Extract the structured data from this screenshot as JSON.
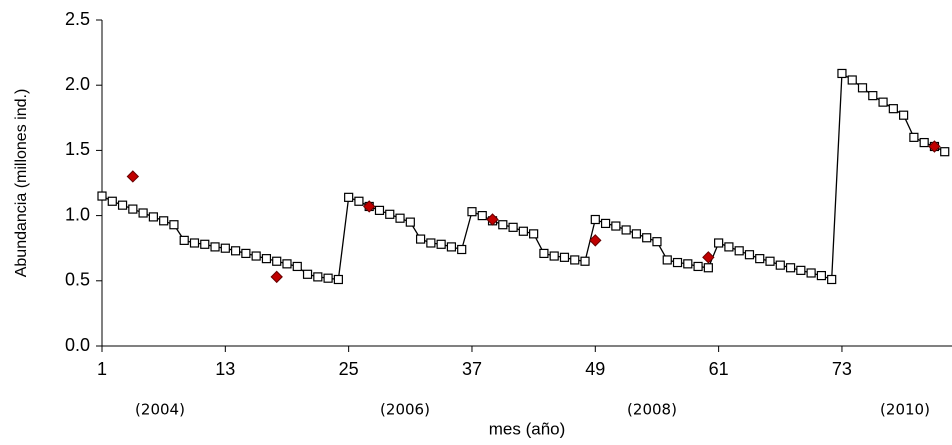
{
  "chart_data": {
    "type": "line",
    "y_axis_label": "Abundancia (millones ind.)",
    "x_axis_label": "mes (año)",
    "annotations": [
      "(2004)",
      "(2006)",
      "(2008)",
      "(2010)"
    ],
    "xlim": [
      1,
      84
    ],
    "ylim": [
      0,
      2.5
    ],
    "xticks": [
      1,
      13,
      25,
      37,
      49,
      61,
      73
    ],
    "yticks": [
      {
        "value": 0,
        "label": "0.0"
      },
      0.5,
      {
        "value": 1,
        "label": "1.0"
      },
      1.5,
      {
        "value": 2,
        "label": "2.0"
      },
      2.5
    ],
    "grid": false,
    "series": [
      {
        "color": "#000000",
        "marker": "square",
        "line": true,
        "x": [
          1,
          2,
          3,
          4,
          5,
          6,
          7,
          8,
          9,
          10,
          11,
          12,
          13,
          14,
          15,
          16,
          17,
          18,
          19,
          20,
          21,
          22,
          23,
          24,
          25,
          26,
          27,
          28,
          29,
          30,
          31,
          32,
          33,
          34,
          35,
          36,
          37,
          38,
          39,
          40,
          41,
          42,
          43,
          44,
          45,
          46,
          47,
          48,
          49,
          50,
          51,
          52,
          53,
          54,
          55,
          56,
          57,
          58,
          59,
          60,
          61,
          62,
          63,
          64,
          65,
          66,
          67,
          68,
          69,
          70,
          71,
          72,
          73,
          74,
          75,
          76,
          77,
          78,
          79,
          80,
          81,
          82,
          83
        ],
        "values": [
          1.15,
          1.11,
          1.08,
          1.05,
          1.02,
          0.99,
          0.96,
          0.93,
          0.81,
          0.79,
          0.78,
          0.76,
          0.75,
          0.73,
          0.71,
          0.69,
          0.67,
          0.65,
          0.63,
          0.61,
          0.55,
          0.53,
          0.52,
          0.51,
          1.14,
          1.11,
          1.07,
          1.04,
          1.01,
          0.98,
          0.95,
          0.82,
          0.79,
          0.78,
          0.76,
          0.74,
          1.03,
          1.0,
          0.96,
          0.93,
          0.91,
          0.88,
          0.86,
          0.71,
          0.69,
          0.68,
          0.66,
          0.65,
          0.97,
          0.94,
          0.92,
          0.89,
          0.86,
          0.83,
          0.8,
          0.66,
          0.64,
          0.63,
          0.61,
          0.6,
          0.79,
          0.76,
          0.73,
          0.7,
          0.67,
          0.65,
          0.62,
          0.6,
          0.58,
          0.56,
          0.54,
          0.51,
          2.09,
          2.04,
          1.98,
          1.92,
          1.87,
          1.82,
          1.77,
          1.6,
          1.56,
          1.53,
          1.49
        ]
      },
      {
        "color": "#c00000",
        "marker": "diamond",
        "line": false,
        "x": [
          4,
          18,
          27,
          39,
          49,
          60,
          82
        ],
        "values": [
          1.3,
          0.53,
          1.07,
          0.97,
          0.81,
          0.68,
          1.53
        ]
      }
    ]
  }
}
